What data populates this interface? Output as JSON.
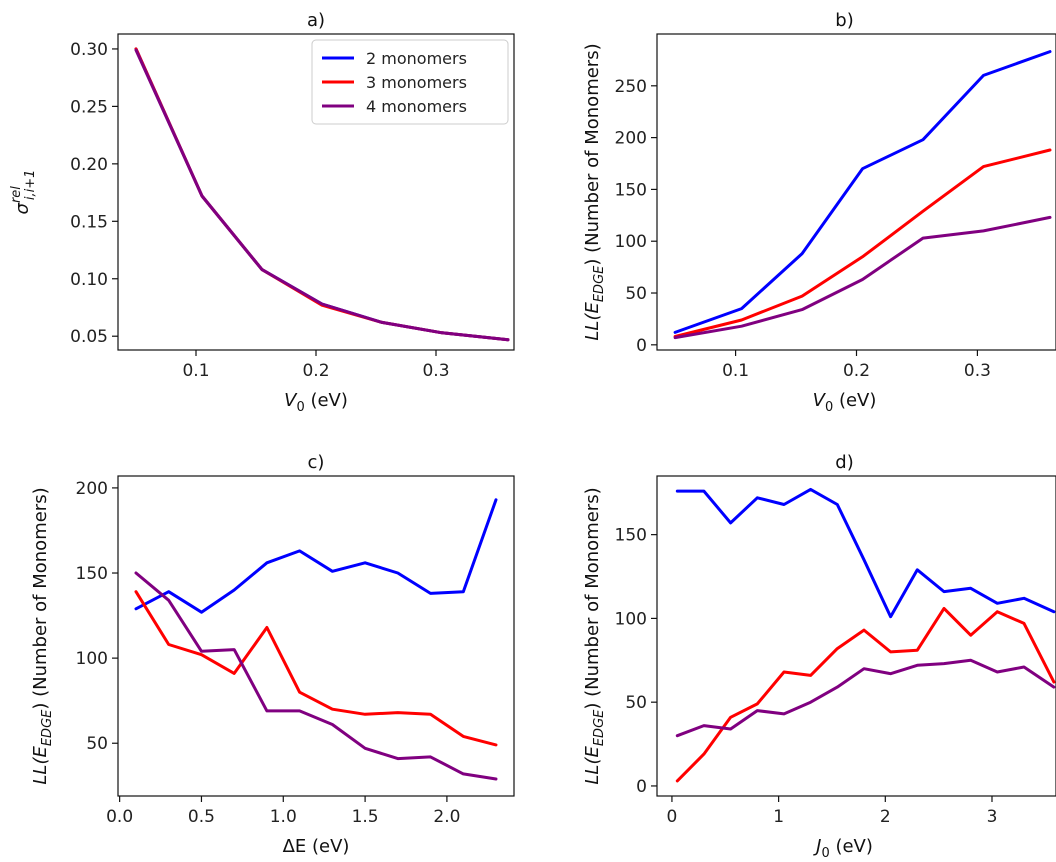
{
  "chart_data": [
    {
      "type": "line",
      "title": "a)",
      "xlabel": "V_0 (eV)",
      "ylabel": "σ^rel_{i,i+1}",
      "xlim": [
        0.035,
        0.365
      ],
      "ylim": [
        0.038,
        0.313
      ],
      "xticks": [
        0.1,
        0.2,
        0.3
      ],
      "xtick_labels": [
        "0.1",
        "0.2",
        "0.3"
      ],
      "yticks": [
        0.05,
        0.1,
        0.15,
        0.2,
        0.25,
        0.3
      ],
      "ytick_labels": [
        "0.05",
        "0.10",
        "0.15",
        "0.20",
        "0.25",
        "0.30"
      ],
      "legend": {
        "placement": "top-right",
        "entries": [
          "2 monomers",
          "3 monomers",
          "4 monomers"
        ]
      },
      "series": [
        {
          "name": "2 monomers",
          "color": "#0000ff",
          "x": [
            0.05,
            0.105,
            0.155,
            0.205,
            0.255,
            0.305,
            0.36
          ],
          "y": [
            0.3,
            0.172,
            0.108,
            0.078,
            0.062,
            0.053,
            0.047
          ]
        },
        {
          "name": "3 monomers",
          "color": "#ff0000",
          "x": [
            0.05,
            0.105,
            0.155,
            0.205,
            0.255,
            0.305,
            0.36
          ],
          "y": [
            0.3,
            0.172,
            0.108,
            0.077,
            0.062,
            0.053,
            0.047
          ]
        },
        {
          "name": "4 monomers",
          "color": "#800080",
          "x": [
            0.05,
            0.105,
            0.155,
            0.205,
            0.255,
            0.305,
            0.36
          ],
          "y": [
            0.299,
            0.172,
            0.108,
            0.078,
            0.062,
            0.053,
            0.047
          ]
        }
      ]
    },
    {
      "type": "line",
      "title": "b)",
      "xlabel": "V_0 (eV)",
      "ylabel": "LL(E_EDGE) (Number of Monomers)",
      "xlim": [
        0.035,
        0.365
      ],
      "ylim": [
        -5,
        300
      ],
      "xticks": [
        0.1,
        0.2,
        0.3
      ],
      "xtick_labels": [
        "0.1",
        "0.2",
        "0.3"
      ],
      "yticks": [
        0,
        50,
        100,
        150,
        200,
        250
      ],
      "ytick_labels": [
        "0",
        "50",
        "100",
        "150",
        "200",
        "250"
      ],
      "series": [
        {
          "name": "2 monomers",
          "color": "#0000ff",
          "x": [
            0.05,
            0.105,
            0.155,
            0.205,
            0.255,
            0.305,
            0.36
          ],
          "y": [
            12,
            35,
            88,
            170,
            198,
            260,
            283
          ]
        },
        {
          "name": "3 monomers",
          "color": "#ff0000",
          "x": [
            0.05,
            0.105,
            0.155,
            0.205,
            0.255,
            0.305,
            0.36
          ],
          "y": [
            8,
            24,
            47,
            85,
            129,
            172,
            188
          ]
        },
        {
          "name": "4 monomers",
          "color": "#800080",
          "x": [
            0.05,
            0.105,
            0.155,
            0.205,
            0.255,
            0.305,
            0.36
          ],
          "y": [
            7,
            18,
            34,
            63,
            103,
            110,
            123
          ]
        }
      ]
    },
    {
      "type": "line",
      "title": "c)",
      "xlabel": "ΔE (eV)",
      "ylabel": "LL(E_EDGE) (Number of Monomers)",
      "xlim": [
        -0.01,
        2.41
      ],
      "ylim": [
        19,
        207
      ],
      "xticks": [
        0.0,
        0.5,
        1.0,
        1.5,
        2.0
      ],
      "xtick_labels": [
        "0.0",
        "0.5",
        "1.0",
        "1.5",
        "2.0"
      ],
      "yticks": [
        50,
        100,
        150,
        200
      ],
      "ytick_labels": [
        "50",
        "100",
        "150",
        "200"
      ],
      "series": [
        {
          "name": "2 monomers",
          "color": "#0000ff",
          "x": [
            0.1,
            0.3,
            0.5,
            0.7,
            0.9,
            1.1,
            1.3,
            1.5,
            1.7,
            1.9,
            2.1,
            2.3
          ],
          "y": [
            129,
            139,
            127,
            140,
            156,
            163,
            151,
            156,
            150,
            138,
            139,
            193
          ]
        },
        {
          "name": "3 monomers",
          "color": "#ff0000",
          "x": [
            0.1,
            0.3,
            0.5,
            0.7,
            0.9,
            1.1,
            1.3,
            1.5,
            1.7,
            1.9,
            2.1,
            2.3
          ],
          "y": [
            139,
            108,
            102,
            91,
            118,
            80,
            70,
            67,
            68,
            67,
            54,
            49
          ]
        },
        {
          "name": "4 monomers",
          "color": "#800080",
          "x": [
            0.1,
            0.3,
            0.5,
            0.7,
            0.9,
            1.1,
            1.3,
            1.5,
            1.7,
            1.9,
            2.1,
            2.3
          ],
          "y": [
            150,
            134,
            104,
            105,
            69,
            69,
            61,
            47,
            41,
            42,
            32,
            29
          ]
        }
      ]
    },
    {
      "type": "line",
      "title": "d)",
      "xlabel": "J_0 (eV)",
      "ylabel": "LL(E_EDGE) (Number of Monomers)",
      "xlim": [
        -0.14,
        3.6
      ],
      "ylim": [
        -6,
        185
      ],
      "xticks": [
        0,
        1,
        2,
        3
      ],
      "xtick_labels": [
        "0",
        "1",
        "2",
        "3"
      ],
      "yticks": [
        0,
        50,
        100,
        150
      ],
      "ytick_labels": [
        "0",
        "50",
        "100",
        "150"
      ],
      "series": [
        {
          "name": "2 monomers",
          "color": "#0000ff",
          "x": [
            0.05,
            0.3,
            0.55,
            0.8,
            1.05,
            1.3,
            1.55,
            1.8,
            2.05,
            2.3,
            2.55,
            2.8,
            3.05,
            3.3,
            3.58
          ],
          "y": [
            176,
            176,
            157,
            172,
            168,
            177,
            168,
            135,
            101,
            129,
            116,
            118,
            109,
            112,
            104
          ]
        },
        {
          "name": "3 monomers",
          "color": "#ff0000",
          "x": [
            0.05,
            0.3,
            0.55,
            0.8,
            1.05,
            1.3,
            1.55,
            1.8,
            2.05,
            2.3,
            2.55,
            2.8,
            3.05,
            3.3,
            3.58
          ],
          "y": [
            3,
            19,
            41,
            49,
            68,
            66,
            82,
            93,
            80,
            81,
            106,
            90,
            104,
            97,
            62
          ]
        },
        {
          "name": "4 monomers",
          "color": "#800080",
          "x": [
            0.05,
            0.3,
            0.55,
            0.8,
            1.05,
            1.3,
            1.55,
            1.8,
            2.05,
            2.3,
            2.55,
            2.8,
            3.05,
            3.3,
            3.58
          ],
          "y": [
            30,
            36,
            34,
            45,
            43,
            50,
            59,
            70,
            67,
            72,
            73,
            75,
            68,
            71,
            59
          ]
        }
      ]
    }
  ]
}
